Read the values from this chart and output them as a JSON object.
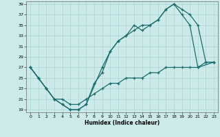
{
  "xlabel": "Humidex (Indice chaleur)",
  "bg_color": "#cceaea",
  "grid_color": "#aad4d4",
  "line_color": "#1a6b6b",
  "xlim": [
    -0.5,
    23.5
  ],
  "ylim": [
    18.5,
    39.5
  ],
  "xticks": [
    0,
    1,
    2,
    3,
    4,
    5,
    6,
    7,
    8,
    9,
    10,
    11,
    12,
    13,
    14,
    15,
    16,
    17,
    18,
    19,
    20,
    21,
    22,
    23
  ],
  "yticks": [
    19,
    21,
    23,
    25,
    27,
    29,
    31,
    33,
    35,
    37,
    39
  ],
  "line1_x": [
    0,
    1,
    2,
    3,
    4,
    5,
    6,
    7,
    8,
    9,
    10,
    11,
    12,
    13,
    14,
    15,
    16,
    17,
    18,
    19,
    20,
    21,
    22,
    23
  ],
  "line1_y": [
    27,
    25,
    23,
    21,
    20,
    19,
    19,
    20,
    24,
    26,
    30,
    32,
    33,
    34,
    35,
    35,
    36,
    38,
    39,
    38,
    37,
    35,
    28,
    28
  ],
  "line2_x": [
    0,
    1,
    2,
    3,
    4,
    5,
    6,
    7,
    9,
    10,
    11,
    12,
    13,
    14,
    15,
    16,
    17,
    18,
    19,
    20,
    21,
    23
  ],
  "line2_y": [
    27,
    25,
    23,
    21,
    20,
    19,
    19,
    20,
    27,
    30,
    32,
    33,
    35,
    34,
    35,
    36,
    38,
    39,
    37,
    35,
    27,
    28
  ],
  "line3_x": [
    0,
    1,
    2,
    3,
    4,
    5,
    6,
    7,
    8,
    9,
    10,
    11,
    12,
    13,
    14,
    15,
    16,
    17,
    18,
    19,
    20,
    21,
    22,
    23
  ],
  "line3_y": [
    27,
    25,
    23,
    21,
    21,
    20,
    20,
    21,
    22,
    23,
    24,
    24,
    25,
    25,
    25,
    26,
    26,
    27,
    27,
    27,
    27,
    27,
    28,
    28
  ]
}
